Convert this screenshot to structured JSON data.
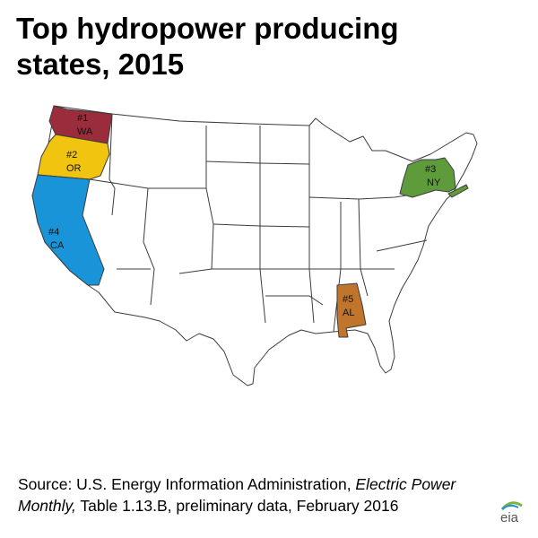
{
  "title_line1": "Top hydropower producing",
  "title_line2": "states, 2015",
  "ranked_states": [
    {
      "rank_label": "#1",
      "state": "WA",
      "color": "#9b2c3c"
    },
    {
      "rank_label": "#2",
      "state": "OR",
      "color": "#f1c40f"
    },
    {
      "rank_label": "#3",
      "state": "NY",
      "color": "#5e9b3b"
    },
    {
      "rank_label": "#4",
      "state": "CA",
      "color": "#1a94d8"
    },
    {
      "rank_label": "#5",
      "state": "AL",
      "color": "#c0742c"
    }
  ],
  "source": {
    "prefix": "Source: U.S. Energy Information Administration, ",
    "publication": "Electric Power Monthly,",
    "suffix": " Table 1.13.B, preliminary data, February 2016"
  },
  "logo_text": "eia"
}
